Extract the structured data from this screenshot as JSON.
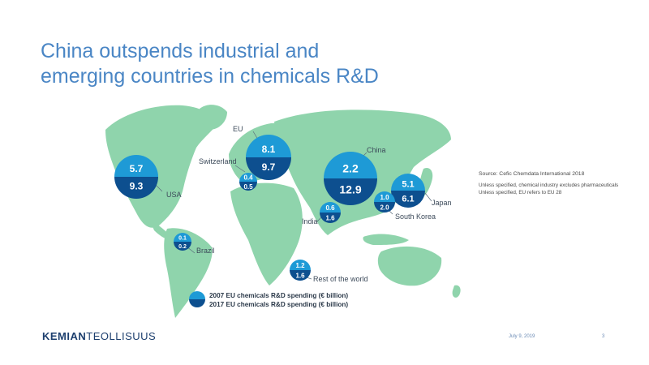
{
  "title": {
    "line1": "China outspends industrial and",
    "line2": "emerging countries in chemicals R&D"
  },
  "colors": {
    "title": "#4a86c5",
    "land": "#8fd4ac",
    "bubble_2007": "#1e9ad6",
    "bubble_2017": "#0d4f8f"
  },
  "regions": [
    {
      "name": "USA",
      "v2007": "5.7",
      "v2017": "9.3"
    },
    {
      "name": "EU",
      "v2007": "8.1",
      "v2017": "9.7"
    },
    {
      "name": "Switzerland",
      "v2007": "0.4",
      "v2017": "0.5"
    },
    {
      "name": "China",
      "v2007": "2.2",
      "v2017": "12.9"
    },
    {
      "name": "Japan",
      "v2007": "5.1",
      "v2017": "6.1"
    },
    {
      "name": "South Korea",
      "v2007": "1.0",
      "v2017": "2.0"
    },
    {
      "name": "India",
      "v2007": "0.6",
      "v2017": "1.6"
    },
    {
      "name": "Brazil",
      "v2007": "0.1",
      "v2017": "0.2"
    },
    {
      "name": "Rest of the world",
      "v2007": "1.2",
      "v2017": "1.6"
    }
  ],
  "source": {
    "line1": "Source: Cefic Chemdata International 2018",
    "line2": "Unless specified, chemical industry excludes pharmaceuticals",
    "line3": "Unless specified, EU refers to EU 28"
  },
  "legend": {
    "item2007": "2007 EU chemicals R&D spending (€ billion)",
    "item2017": "2017 EU chemicals R&D spending (€ billion)"
  },
  "footer": {
    "logo_bold": "KEMIAN",
    "logo_rest": "TEOLLISUUS",
    "date": "July 9, 2019",
    "page": "3"
  }
}
